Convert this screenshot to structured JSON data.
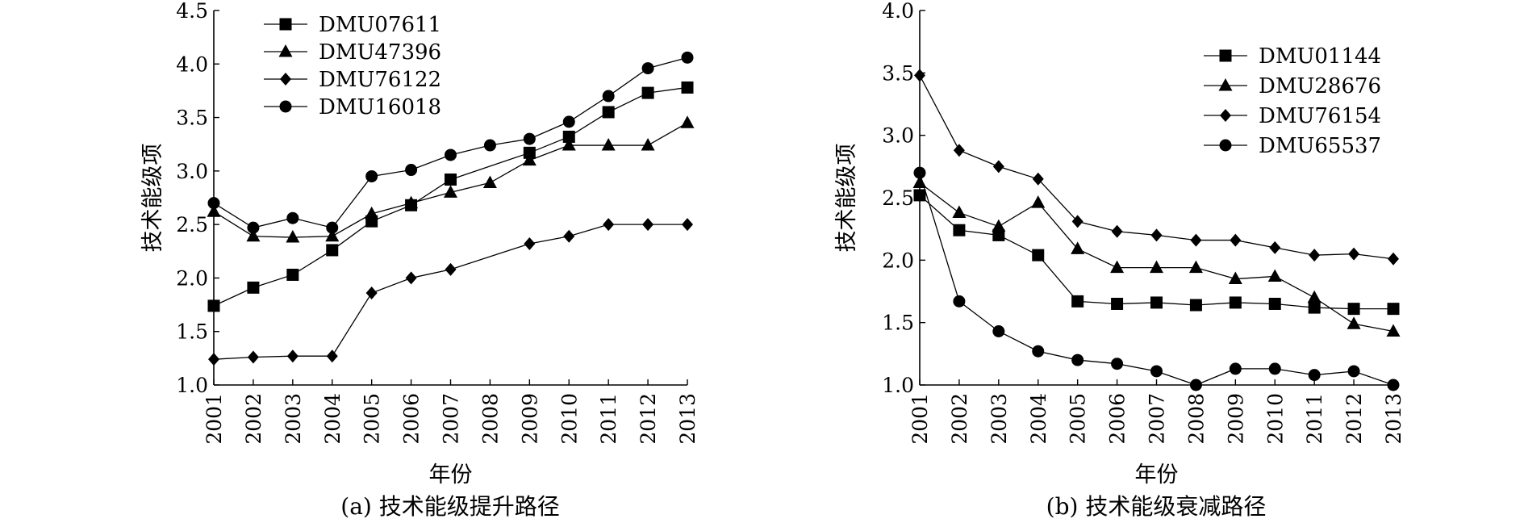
{
  "chart_data": [
    {
      "type": "line",
      "caption": "(a) 技术能级提升路径",
      "xlabel": "年份",
      "ylabel": "技术能级项",
      "ylim": [
        1.0,
        4.5
      ],
      "yticks": [
        1.0,
        1.5,
        2.0,
        2.5,
        3.0,
        3.5,
        4.0,
        4.5
      ],
      "ytick_labels": [
        "1.0",
        "1.5",
        "2.0",
        "2.5",
        "3.0",
        "3.5",
        "4.0",
        "4.5"
      ],
      "categories": [
        "2001",
        "2002",
        "2003",
        "2004",
        "2005",
        "2006",
        "2007",
        "2008",
        "2009",
        "2010",
        "2011",
        "2012",
        "2013"
      ],
      "legend_position": "top-left",
      "grid": false,
      "series": [
        {
          "name": "DMU07611",
          "marker": "square",
          "values": [
            1.74,
            1.91,
            2.03,
            2.26,
            2.53,
            2.68,
            2.92,
            null,
            3.17,
            3.32,
            3.55,
            3.73,
            3.78
          ]
        },
        {
          "name": "DMU47396",
          "marker": "triangle",
          "values": [
            2.62,
            2.39,
            2.38,
            2.39,
            2.6,
            2.7,
            2.8,
            2.89,
            3.1,
            3.24,
            3.24,
            3.24,
            3.45
          ]
        },
        {
          "name": "DMU76122",
          "marker": "diamond",
          "values": [
            1.24,
            1.26,
            1.27,
            1.27,
            1.86,
            2.0,
            2.08,
            null,
            2.32,
            2.39,
            2.5,
            2.5,
            2.5
          ]
        },
        {
          "name": "DMU16018",
          "marker": "circle",
          "values": [
            2.7,
            2.47,
            2.56,
            2.47,
            2.95,
            3.01,
            3.15,
            3.24,
            3.3,
            3.46,
            3.7,
            3.96,
            4.06
          ]
        }
      ]
    },
    {
      "type": "line",
      "caption": "(b) 技术能级衰减路径",
      "xlabel": "年份",
      "ylabel": "技术能级项",
      "ylim": [
        1.0,
        4.0
      ],
      "yticks": [
        1.0,
        1.5,
        2.0,
        2.5,
        3.0,
        3.5,
        4.0
      ],
      "ytick_labels": [
        "1.0",
        "1.5",
        "2.0",
        "2.5",
        "3.0",
        "3.5",
        "4.0"
      ],
      "categories": [
        "2001",
        "2002",
        "2003",
        "2004",
        "2005",
        "2006",
        "2007",
        "2008",
        "2009",
        "2010",
        "2011",
        "2012",
        "2013"
      ],
      "legend_position": "top-right",
      "grid": false,
      "series": [
        {
          "name": "DMU01144",
          "marker": "square",
          "values": [
            2.52,
            2.24,
            2.2,
            2.04,
            1.67,
            1.65,
            1.66,
            1.64,
            1.66,
            1.65,
            1.62,
            1.61,
            1.61
          ]
        },
        {
          "name": "DMU28676",
          "marker": "triangle",
          "values": [
            2.62,
            2.38,
            2.27,
            2.46,
            2.09,
            1.94,
            1.94,
            1.94,
            1.85,
            1.87,
            1.7,
            1.49,
            1.43
          ]
        },
        {
          "name": "DMU76154",
          "marker": "diamond",
          "values": [
            3.48,
            2.88,
            2.75,
            2.65,
            2.31,
            2.23,
            2.2,
            2.16,
            2.16,
            2.1,
            2.04,
            2.05,
            2.01
          ]
        },
        {
          "name": "DMU65537",
          "marker": "circle",
          "values": [
            2.7,
            1.67,
            1.43,
            1.27,
            1.2,
            1.17,
            1.11,
            1.0,
            1.13,
            1.13,
            1.08,
            1.11,
            1.0
          ]
        }
      ]
    }
  ]
}
